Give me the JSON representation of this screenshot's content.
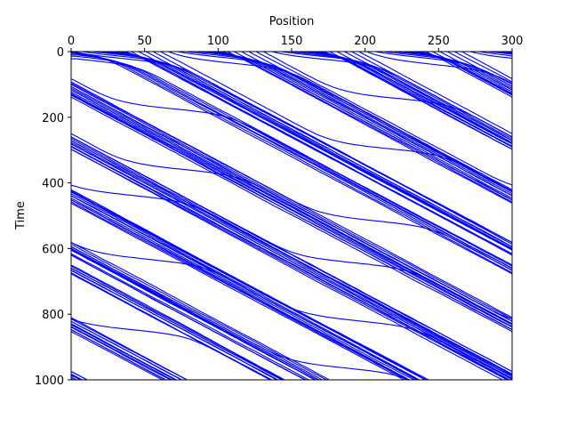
{
  "chart_data": {
    "type": "line",
    "title": "",
    "xlabel": "Position",
    "ylabel": "Time",
    "x_axis_position": "top",
    "y_axis_inverted": true,
    "xlim": [
      0,
      300
    ],
    "ylim": [
      0,
      1000
    ],
    "xticks": [
      0,
      50,
      100,
      150,
      200,
      250,
      300
    ],
    "yticks": [
      0,
      200,
      400,
      600,
      800,
      1000
    ],
    "grid": false,
    "legend": "none",
    "line_color": "#0000ff",
    "description_of_series": "space-time trajectories of many particles moving right on a periodic 0-300 track",
    "trajectories": {
      "count": 60,
      "track_length": 300,
      "time_range": [
        0,
        1000
      ],
      "typical_period": 250,
      "phase_spacing": 5
    }
  }
}
